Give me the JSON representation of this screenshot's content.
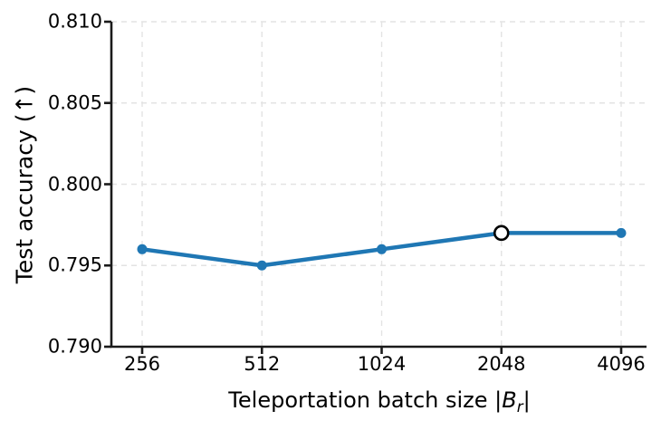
{
  "chart_data": {
    "type": "line",
    "title": "",
    "x": [
      256,
      512,
      1024,
      2048,
      4096
    ],
    "xtick_labels": [
      "256",
      "512",
      "1024",
      "2048",
      "4096"
    ],
    "x_scale": "log2",
    "series": [
      {
        "name": "test-accuracy",
        "values": [
          0.796,
          0.795,
          0.796,
          0.797,
          0.797
        ]
      }
    ],
    "highlight_point": {
      "x": 2048,
      "value": 0.797,
      "marker": "open-circle",
      "fill": "#ffffff",
      "edge": "#000000"
    },
    "xlabel": "Teleportation batch size |B_r|",
    "xlabel_parts": {
      "prefix": "Teleportation batch size |",
      "variable": "B",
      "subscript": "r",
      "suffix": "|"
    },
    "ylabel": "Test accuracy (↑)",
    "ylim": [
      0.79,
      0.81
    ],
    "yticks": [
      0.79,
      0.795,
      0.8,
      0.805,
      0.81
    ],
    "ytick_labels": [
      "0.790",
      "0.795",
      "0.800",
      "0.805",
      "0.810"
    ],
    "grid": true,
    "grid_style": "dashed",
    "legend": "none",
    "colors": {
      "line": "#1f77b4",
      "marker": "#1f77b4",
      "grid": "#e3e3e3",
      "spine": "#1a1a1a",
      "text": "#000000",
      "background": "#ffffff"
    }
  }
}
